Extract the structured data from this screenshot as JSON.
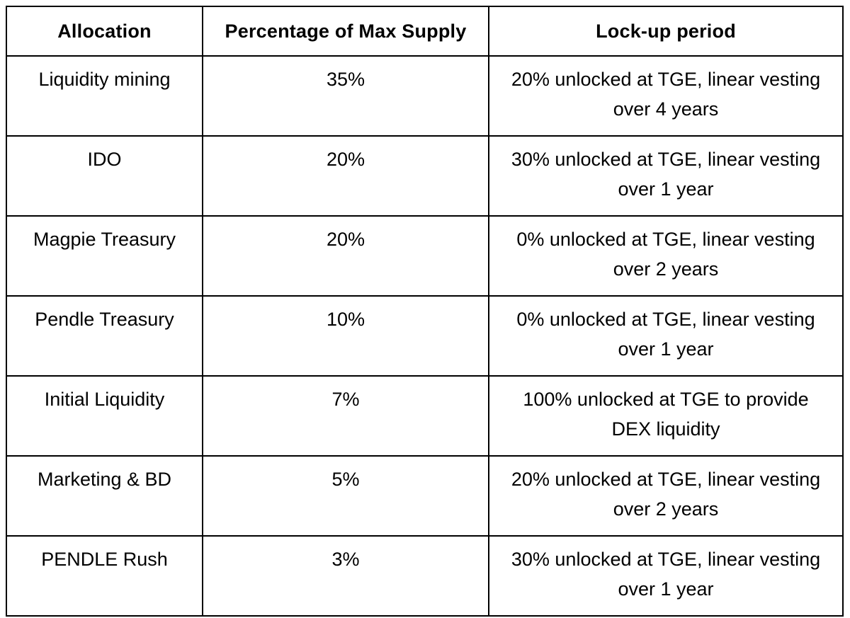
{
  "table": {
    "headers": [
      "Allocation",
      "Percentage of Max Supply",
      "Lock-up period"
    ],
    "rows": [
      {
        "allocation": "Liquidity mining",
        "percentage": "35%",
        "lockup": [
          "20% unlocked at TGE, linear vesting",
          "over 4 years"
        ]
      },
      {
        "allocation": "IDO",
        "percentage": "20%",
        "lockup": [
          "30% unlocked at TGE, linear vesting",
          "over 1 year"
        ]
      },
      {
        "allocation": "Magpie Treasury",
        "percentage": "20%",
        "lockup": [
          "0% unlocked at TGE, linear vesting",
          "over 2 years"
        ]
      },
      {
        "allocation": "Pendle Treasury",
        "percentage": "10%",
        "lockup": [
          "0% unlocked at TGE, linear vesting",
          "over 1 year"
        ]
      },
      {
        "allocation": "Initial Liquidity",
        "percentage": "7%",
        "lockup": [
          "100% unlocked at TGE to provide",
          "DEX liquidity"
        ]
      },
      {
        "allocation": "Marketing & BD",
        "percentage": "5%",
        "lockup": [
          "20% unlocked at TGE, linear vesting",
          "over 2 years"
        ]
      },
      {
        "allocation": "PENDLE Rush",
        "percentage": "3%",
        "lockup": [
          "30% unlocked at TGE, linear vesting",
          "over 1 year"
        ]
      }
    ],
    "colors": {
      "border": "#000000",
      "text": "#000000",
      "background": "#ffffff"
    }
  }
}
